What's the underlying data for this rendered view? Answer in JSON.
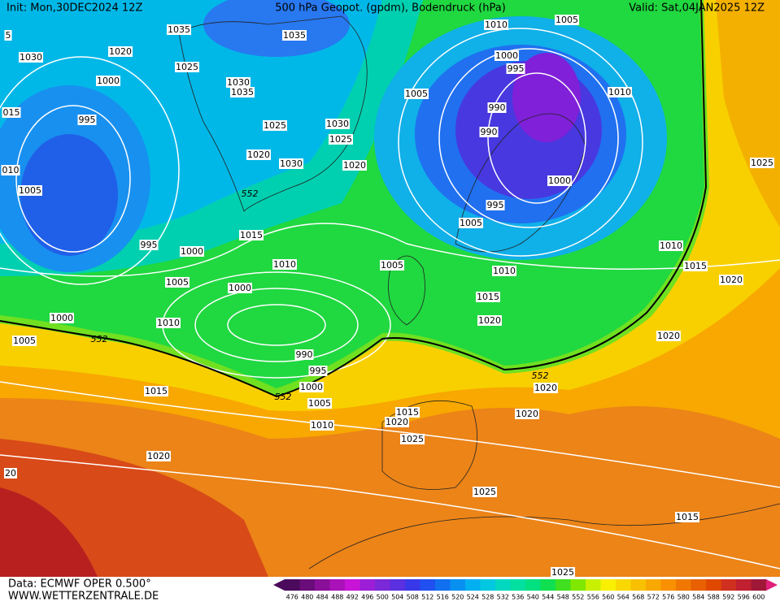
{
  "header": {
    "init": "Init: Mon,30DEC2024 12Z",
    "title": "500 hPa Geopot. (gpdm), Bodendruck (hPa)",
    "valid": "Valid: Sat,04JAN2025 12Z"
  },
  "footer": {
    "data": "Data: ECMWF OPER 0.500°",
    "url": "WWW.WETTERZENTRALE.DE"
  },
  "colorbar": {
    "ticks": [
      476,
      480,
      484,
      488,
      492,
      496,
      500,
      504,
      508,
      512,
      516,
      520,
      524,
      528,
      532,
      536,
      540,
      544,
      548,
      552,
      556,
      560,
      564,
      568,
      572,
      576,
      580,
      584,
      588,
      592,
      596,
      600
    ],
    "colors": [
      "#4b0a5c",
      "#6a0c7a",
      "#8a0f99",
      "#a912b8",
      "#c814d6",
      "#9c1ed6",
      "#7a28d8",
      "#5a30e0",
      "#3838e8",
      "#2050f0",
      "#1070f0",
      "#0890f0",
      "#00b0f0",
      "#00c8e0",
      "#00d8c0",
      "#00e0a0",
      "#00e080",
      "#10e050",
      "#40e020",
      "#80e800",
      "#c8f000",
      "#f8f000",
      "#f8d800",
      "#f8c000",
      "#f8a800",
      "#f89000",
      "#f07800",
      "#e86000",
      "#e04800",
      "#d03020",
      "#c02030",
      "#a01838"
    ]
  },
  "isobar_labels": [
    "1035",
    "1035",
    "1030",
    "1020",
    "1025",
    "1000",
    "1030",
    "1035",
    "995",
    "1025",
    "1030",
    "1025",
    "1020",
    "1030",
    "1020",
    "1005",
    "552",
    "995",
    "1000",
    "1015",
    "1010",
    "1005",
    "1005",
    "1000",
    "1000",
    "1010",
    "1005",
    "552",
    "990",
    "995",
    "1000",
    "552",
    "1005",
    "1015",
    "1010",
    "1015",
    "1020",
    "1025",
    "1020",
    "20",
    "1005",
    "1010",
    "1000",
    "995",
    "1005",
    "1010",
    "990",
    "990",
    "1000",
    "995",
    "1005",
    "1010",
    "1010",
    "1015",
    "1015",
    "1020",
    "1020",
    "1020",
    "552",
    "1020",
    "1020",
    "1025",
    "1015",
    "1025",
    "1025",
    "5",
    "015",
    "010"
  ]
}
